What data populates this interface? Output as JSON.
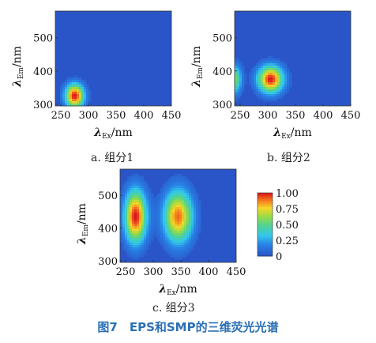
{
  "figure_title": "图7　EPS和SMP的三维荧光光谱",
  "colors": {
    "title": "#2a6fb5",
    "background": "#2a55c8"
  },
  "chart_data": [
    {
      "type": "heatmap",
      "caption": "a. 组分1",
      "xlabel": "λEx/nm",
      "ylabel": "λEm/nm",
      "xlim": [
        240,
        450
      ],
      "ylim": [
        295,
        580
      ],
      "xticks": [
        250,
        300,
        350,
        400,
        450
      ],
      "yticks": [
        300,
        400,
        500
      ],
      "peaks": [
        {
          "ex": 275,
          "em": 325,
          "intensity": 1.0,
          "sx": 12,
          "sy": 25
        }
      ]
    },
    {
      "type": "heatmap",
      "caption": "b. 组分2",
      "xlabel": "λEx/nm",
      "ylabel": "λEm/nm",
      "xlim": [
        240,
        450
      ],
      "ylim": [
        295,
        580
      ],
      "xticks": [
        250,
        300,
        350,
        400,
        450
      ],
      "yticks": [
        300,
        400,
        500
      ],
      "peaks": [
        {
          "ex": 305,
          "em": 375,
          "intensity": 1.0,
          "sx": 16,
          "sy": 28
        },
        {
          "ex": 240,
          "em": 375,
          "intensity": 0.55,
          "sx": 9,
          "sy": 30
        }
      ]
    },
    {
      "type": "heatmap",
      "caption": "c. 组分3",
      "xlabel": "λEx/nm",
      "ylabel": "λEm/nm",
      "xlim": [
        240,
        450
      ],
      "ylim": [
        295,
        580
      ],
      "xticks": [
        250,
        300,
        350,
        400,
        450
      ],
      "yticks": [
        300,
        400,
        500
      ],
      "peaks": [
        {
          "ex": 268,
          "em": 435,
          "intensity": 1.0,
          "sx": 14,
          "sy": 55
        },
        {
          "ex": 345,
          "em": 435,
          "intensity": 0.9,
          "sx": 18,
          "sy": 55
        }
      ],
      "colorbar": {
        "range": [
          0,
          1
        ],
        "ticks": [
          "1.00",
          "0.75",
          "0.50",
          "0.25",
          "0"
        ]
      }
    }
  ]
}
